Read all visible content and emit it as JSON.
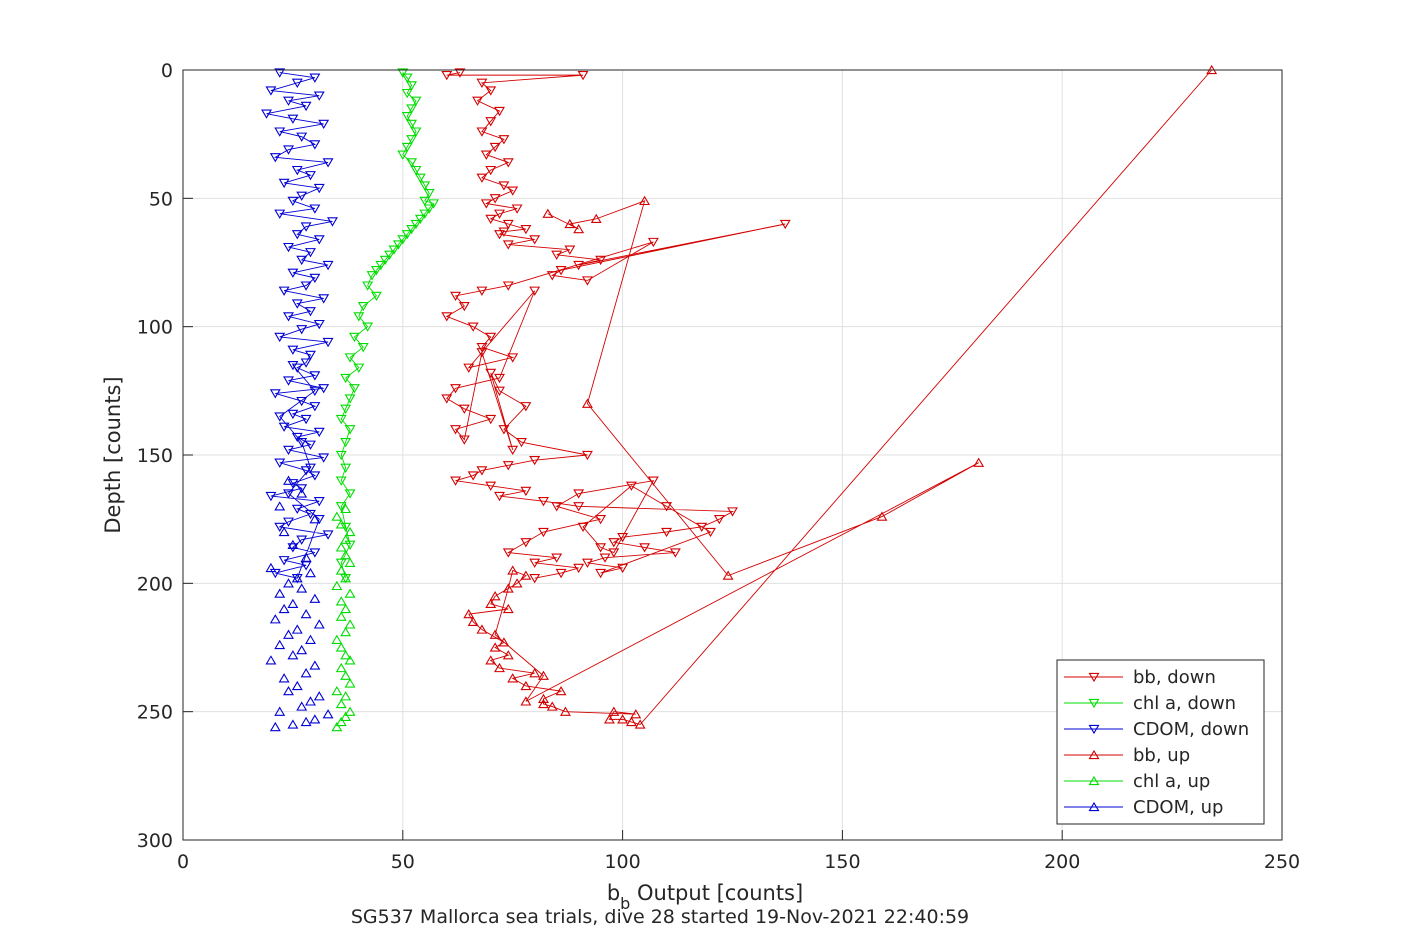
{
  "chart_data": {
    "type": "scatter",
    "xlabel_main": "b",
    "xlabel_sub": "b",
    "xlabel_rest": " Output [counts]",
    "ylabel": "Depth [counts]",
    "subtitle": "SG537 Mallorca sea trials, dive 28 started 19-Nov-2021 22:40:59",
    "xlim": [
      0,
      250
    ],
    "ylim": [
      0,
      300
    ],
    "y_reversed": true,
    "grid": true,
    "legend_position": "bottom-right",
    "x_ticks": [
      "0",
      "50",
      "100",
      "150",
      "200",
      "250"
    ],
    "y_ticks": [
      "0",
      "50",
      "100",
      "150",
      "200",
      "250",
      "300"
    ],
    "series": [
      {
        "name": "bb, down",
        "color": "#d40000",
        "marker": "triangle-down",
        "x": [
          63,
          60,
          91,
          68,
          70,
          67,
          72,
          70,
          68,
          73,
          71,
          69,
          74,
          70,
          68,
          73,
          75,
          71,
          69,
          76,
          72,
          70,
          74,
          78,
          73,
          72,
          80,
          74,
          88,
          85,
          95,
          90,
          137,
          86,
          84,
          92,
          107,
          74,
          68,
          62,
          64,
          60,
          66,
          70,
          68,
          75,
          65,
          80,
          72,
          62,
          60,
          64,
          70,
          62,
          64,
          68,
          75,
          70,
          72,
          78,
          73,
          77,
          92,
          80,
          74,
          68,
          66,
          62,
          70,
          78,
          72,
          82,
          90,
          125,
          122,
          118,
          110,
          100,
          98,
          105,
          112,
          96,
          92,
          100,
          95,
          120,
          110,
          102,
          91,
          95,
          98,
          107,
          90,
          85,
          95,
          82,
          78,
          74,
          85,
          80,
          90,
          86,
          80
        ],
        "y": [
          1,
          2,
          2,
          5,
          8,
          12,
          16,
          20,
          24,
          27,
          30,
          33,
          36,
          39,
          42,
          45,
          47,
          50,
          52,
          54,
          56,
          58,
          60,
          62,
          63,
          64,
          66,
          68,
          70,
          72,
          74,
          76,
          60,
          78,
          80,
          82,
          67,
          84,
          86,
          88,
          92,
          96,
          100,
          104,
          108,
          112,
          116,
          86,
          120,
          124,
          128,
          132,
          136,
          140,
          144,
          110,
          148,
          118,
          125,
          131,
          140,
          145,
          150,
          152,
          154,
          156,
          158,
          160,
          162,
          164,
          166,
          168,
          170,
          172,
          175,
          178,
          180,
          182,
          184,
          186,
          188,
          190,
          192,
          194,
          196,
          180,
          170,
          162,
          178,
          186,
          188,
          160,
          165,
          170,
          175,
          180,
          184,
          188,
          190,
          192,
          194,
          196,
          198
        ]
      },
      {
        "name": "chl a, down",
        "color": "#00dd00",
        "marker": "triangle-down",
        "x": [
          50,
          51,
          52,
          51,
          53,
          52,
          51,
          52,
          53,
          52,
          51,
          50,
          52,
          53,
          54,
          55,
          56,
          55,
          57,
          56,
          55,
          54,
          53,
          52,
          51,
          50,
          49,
          48,
          47,
          46,
          45,
          44,
          43,
          42,
          44,
          41,
          40,
          42,
          39,
          41,
          38,
          40,
          37,
          39,
          38,
          37,
          36,
          38,
          37,
          36,
          37,
          36,
          38,
          36,
          37,
          38,
          36,
          37
        ],
        "y": [
          1,
          3,
          6,
          9,
          12,
          15,
          18,
          21,
          24,
          27,
          30,
          33,
          36,
          39,
          42,
          45,
          48,
          51,
          52,
          54,
          56,
          58,
          60,
          62,
          64,
          66,
          68,
          70,
          72,
          74,
          76,
          78,
          80,
          84,
          88,
          92,
          96,
          100,
          104,
          108,
          112,
          116,
          120,
          124,
          128,
          132,
          136,
          140,
          145,
          150,
          155,
          160,
          165,
          170,
          178,
          185,
          192,
          198
        ]
      },
      {
        "name": "CDOM, down",
        "color": "#0000d4",
        "marker": "triangle-down",
        "x": [
          22,
          30,
          26,
          20,
          31,
          24,
          28,
          19,
          25,
          32,
          22,
          27,
          30,
          24,
          21,
          33,
          26,
          29,
          23,
          31,
          27,
          25,
          30,
          22,
          34,
          28,
          26,
          31,
          24,
          29,
          27,
          33,
          25,
          30,
          28,
          23,
          32,
          26,
          29,
          24,
          31,
          27,
          22,
          33,
          25,
          29,
          28,
          26,
          30,
          24,
          32,
          21,
          27,
          30,
          25,
          28,
          23,
          31,
          26,
          29,
          24,
          32,
          22,
          28,
          30,
          25,
          27,
          20,
          31,
          26,
          29,
          24,
          22,
          33,
          27,
          25,
          30,
          23,
          28,
          21,
          26,
          31,
          24,
          29,
          27,
          22,
          30,
          25
        ],
        "y": [
          1,
          3,
          5,
          8,
          10,
          12,
          14,
          17,
          19,
          21,
          24,
          26,
          29,
          31,
          34,
          36,
          39,
          41,
          44,
          46,
          49,
          51,
          54,
          56,
          59,
          61,
          64,
          66,
          69,
          71,
          74,
          76,
          79,
          81,
          84,
          86,
          89,
          91,
          94,
          96,
          99,
          101,
          104,
          106,
          109,
          111,
          114,
          116,
          119,
          121,
          124,
          126,
          129,
          131,
          134,
          136,
          139,
          141,
          143,
          146,
          148,
          151,
          153,
          156,
          158,
          161,
          163,
          166,
          168,
          171,
          173,
          176,
          178,
          181,
          183,
          186,
          188,
          191,
          193,
          196,
          198,
          175,
          165,
          155,
          145,
          135,
          125,
          115
        ]
      },
      {
        "name": "bb, up",
        "color": "#d40000",
        "marker": "triangle-up",
        "x": [
          234,
          104,
          102,
          100,
          97,
          98,
          103,
          87,
          84,
          82,
          82,
          86,
          78,
          75,
          80,
          72,
          70,
          74,
          71,
          73,
          68,
          66,
          65,
          74,
          70,
          71,
          76,
          78,
          75,
          74,
          71,
          82,
          78,
          181,
          159,
          124,
          92,
          105,
          94,
          88,
          90,
          83
        ],
        "y": [
          0,
          255,
          254,
          253,
          253,
          250,
          251,
          250,
          248,
          247,
          245,
          242,
          240,
          237,
          235,
          233,
          230,
          228,
          225,
          223,
          218,
          215,
          212,
          210,
          208,
          205,
          200,
          197,
          195,
          202,
          220,
          236,
          246,
          153,
          174,
          197,
          130,
          51,
          58,
          60,
          62,
          56
        ]
      },
      {
        "name": "chl a, up",
        "color": "#00dd00",
        "marker": "triangle-up",
        "x": [
          35,
          36,
          37,
          38,
          36,
          37,
          35,
          38,
          37,
          36,
          38,
          37,
          36,
          35,
          37,
          38,
          36,
          37,
          36,
          38,
          35,
          37,
          36,
          38,
          37,
          36,
          37,
          38,
          36,
          35,
          37
        ],
        "y": [
          256,
          254,
          252,
          250,
          247,
          244,
          242,
          239,
          236,
          233,
          230,
          228,
          225,
          222,
          219,
          216,
          213,
          210,
          207,
          204,
          201,
          198,
          195,
          192,
          189,
          186,
          183,
          180,
          177,
          174,
          171
        ]
      },
      {
        "name": "CDOM, up",
        "color": "#0000d4",
        "marker": "triangle-up",
        "x": [
          21,
          25,
          28,
          30,
          33,
          22,
          27,
          29,
          31,
          24,
          26,
          23,
          28,
          30,
          20,
          25,
          27,
          22,
          29,
          24,
          26,
          31,
          21,
          28,
          23,
          25,
          30,
          22,
          27,
          24,
          26,
          29,
          20,
          28,
          25,
          23,
          30,
          22,
          27,
          24
        ],
        "y": [
          256,
          255,
          254,
          253,
          251,
          250,
          248,
          246,
          244,
          242,
          240,
          237,
          235,
          232,
          230,
          228,
          226,
          224,
          222,
          220,
          218,
          216,
          214,
          212,
          210,
          208,
          206,
          204,
          202,
          200,
          198,
          196,
          194,
          190,
          185,
          180,
          175,
          170,
          165,
          160
        ]
      }
    ]
  }
}
